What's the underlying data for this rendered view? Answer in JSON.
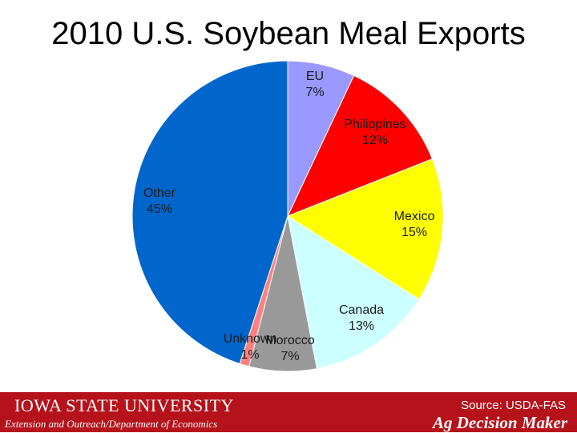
{
  "title": "2010 U.S. Soybean Meal Exports",
  "chart_data": {
    "type": "pie",
    "title": "2010 U.S. Soybean Meal Exports",
    "unit": "%",
    "slices": [
      {
        "label": "EU",
        "value": 7,
        "display": "7%",
        "color": "#9999ff"
      },
      {
        "label": "Philippines",
        "value": 12,
        "display": "12%",
        "color": "#ff0000"
      },
      {
        "label": "Mexico",
        "value": 15,
        "display": "15%",
        "color": "#ffff00"
      },
      {
        "label": "Canada",
        "value": 13,
        "display": "13%",
        "color": "#ccffff"
      },
      {
        "label": "Morocco",
        "value": 7,
        "display": "7%",
        "color": "#999999"
      },
      {
        "label": "Unknown",
        "value": 1,
        "display": "1%",
        "color": "#ff8080"
      },
      {
        "label": "Other",
        "value": 45,
        "display": "45%",
        "color": "#0066cc"
      }
    ],
    "start_angle_deg": 0,
    "direction": "clockwise"
  },
  "footer": {
    "university": "IOWA STATE UNIVERSITY",
    "department": "Extension and Outreach/Department of Economics",
    "source": "Source: USDA-FAS",
    "brand": "Ag Decision Maker",
    "background_color": "#b5121b"
  }
}
